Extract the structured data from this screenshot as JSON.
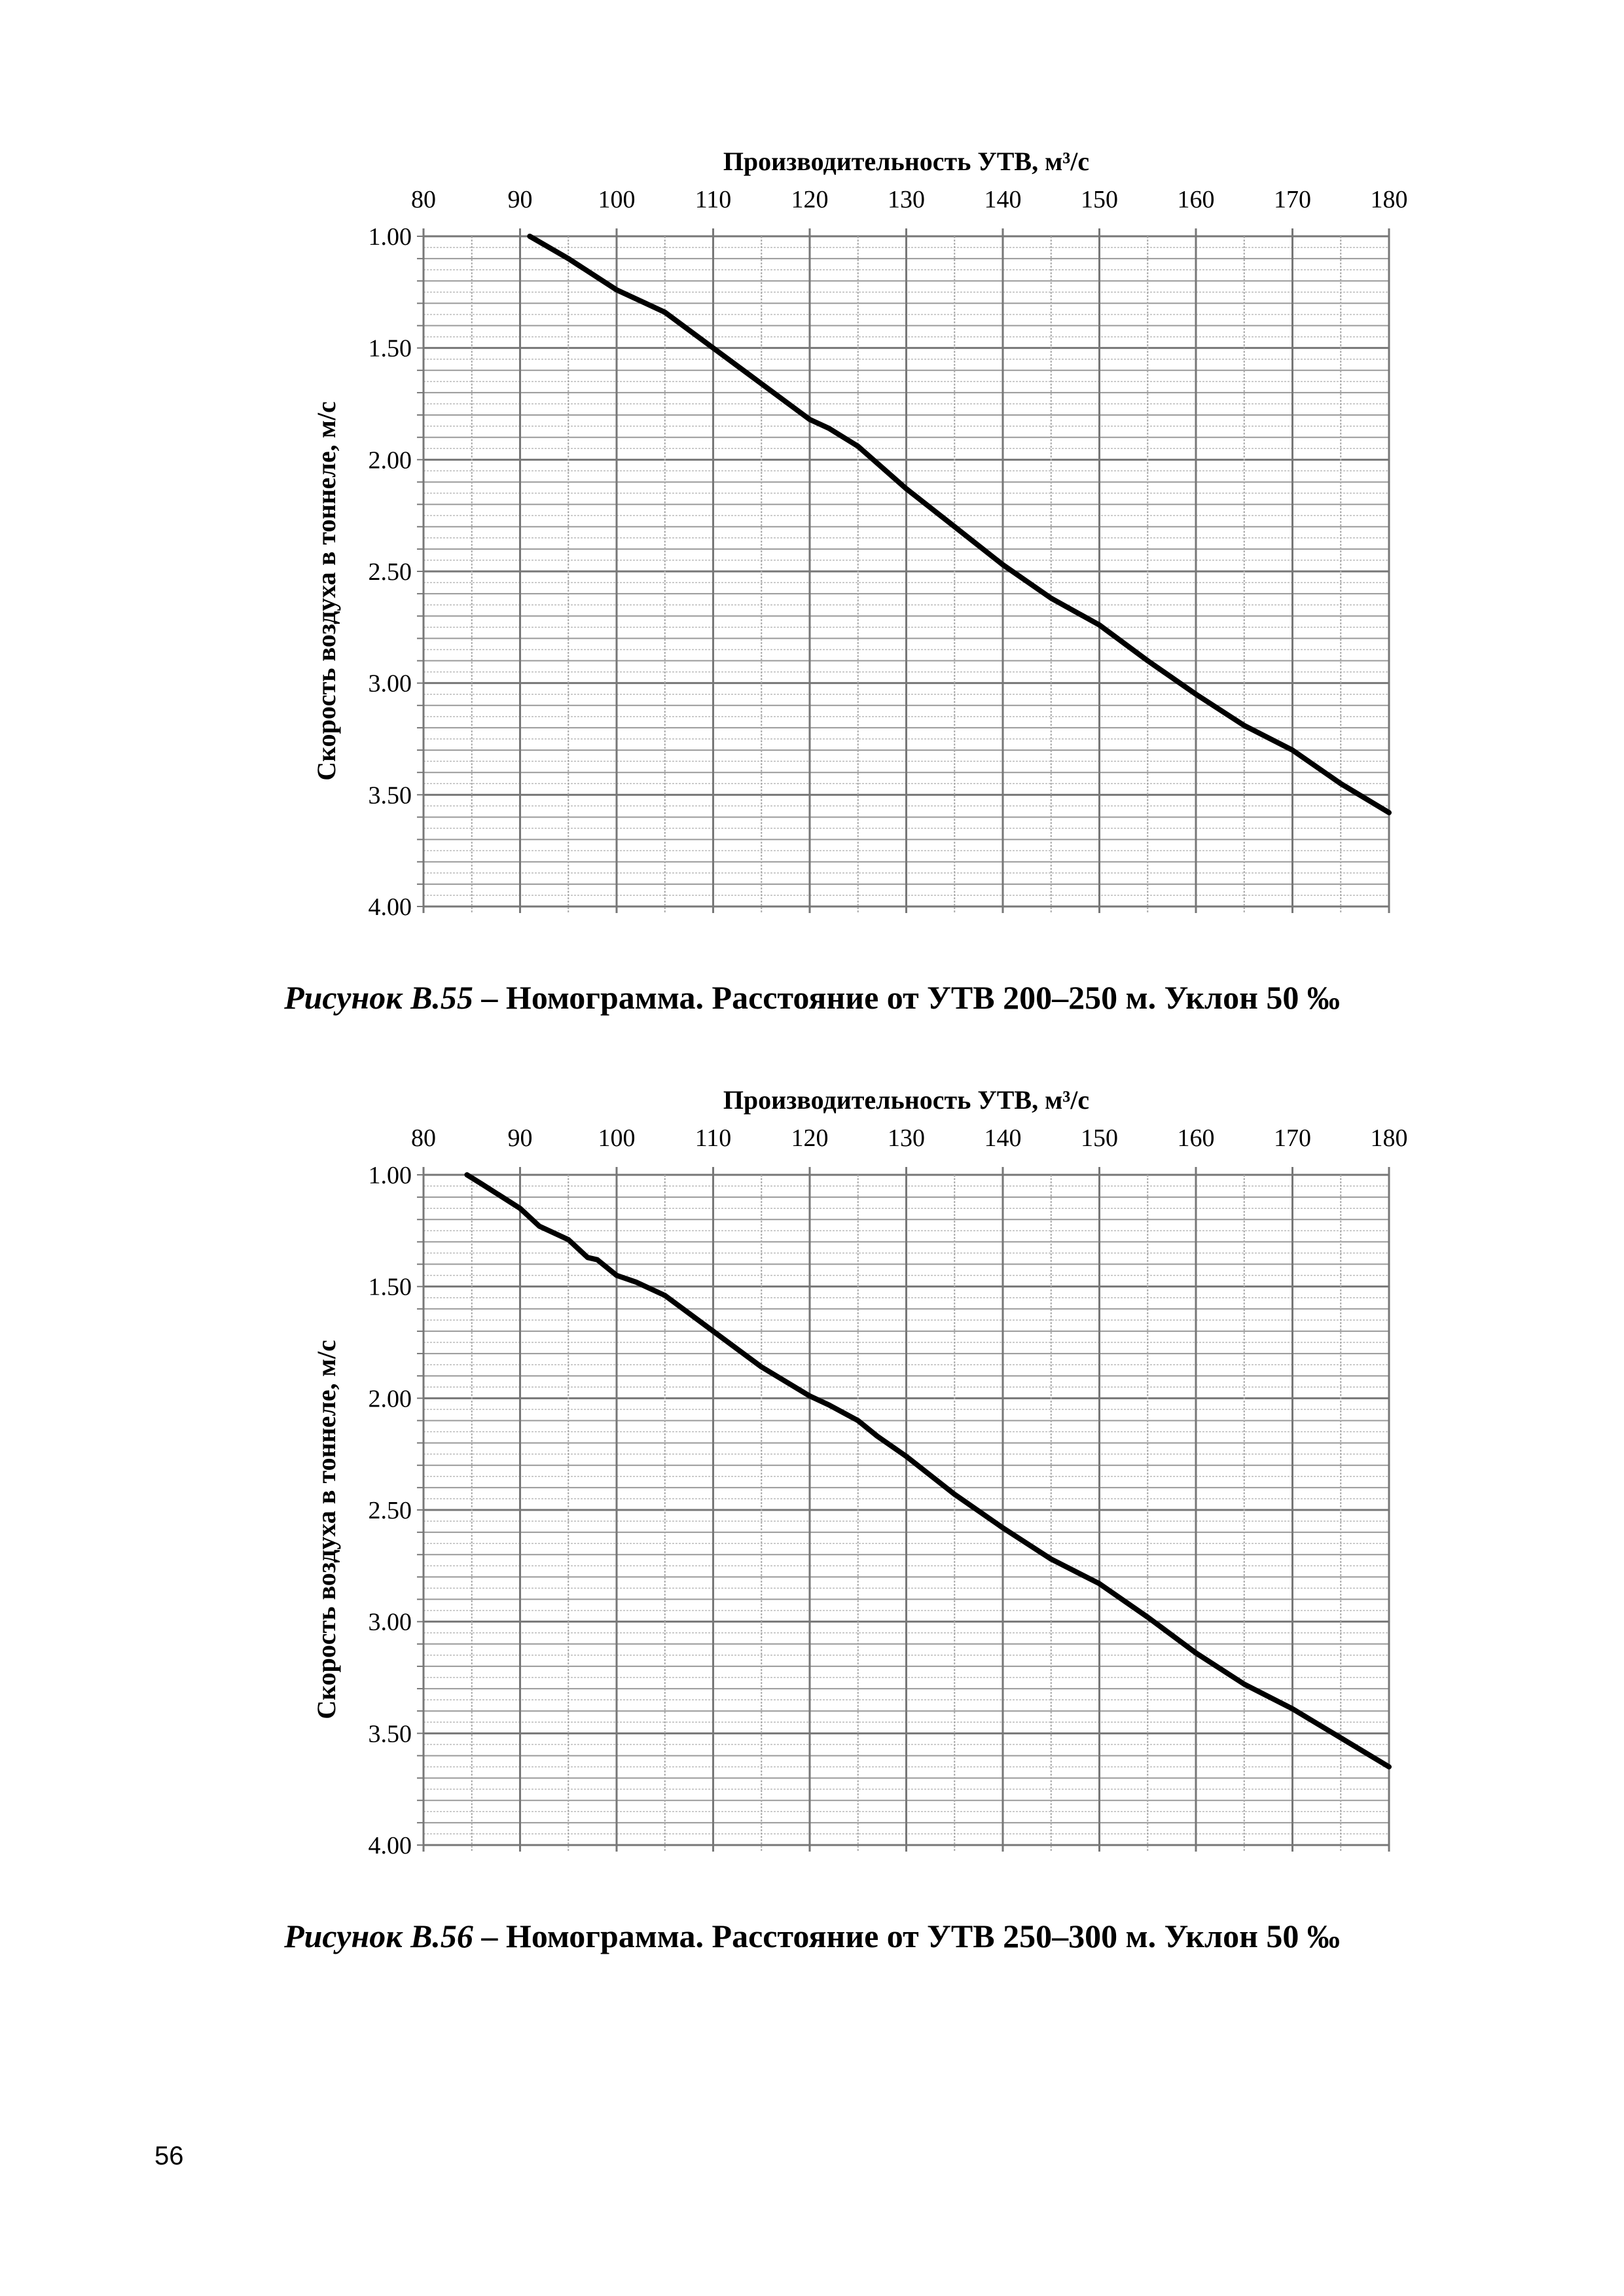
{
  "chart_data": [
    {
      "type": "line",
      "title": "Производительность УТВ, м³/с",
      "xlabel": "Производительность УТВ, м³/с",
      "ylabel": "Скорость воздуха в тоннеле, м/с",
      "xlim": [
        80,
        180
      ],
      "ylim": [
        1.0,
        4.0
      ],
      "y_inverted": true,
      "x_axis_position": "top",
      "xticks": [
        "80",
        "90",
        "100",
        "110",
        "120",
        "130",
        "140",
        "150",
        "160",
        "170",
        "180"
      ],
      "yticks": [
        "1.00",
        "1.50",
        "2.00",
        "2.50",
        "3.00",
        "3.50",
        "4.00"
      ],
      "grid": true,
      "series": [
        {
          "name": "curve",
          "x": [
            91,
            95,
            100,
            103,
            105,
            110,
            115,
            120,
            122,
            125,
            130,
            135,
            140,
            145,
            150,
            155,
            160,
            165,
            170,
            175,
            180
          ],
          "y": [
            1.0,
            1.1,
            1.24,
            1.3,
            1.34,
            1.5,
            1.66,
            1.82,
            1.86,
            1.94,
            2.13,
            2.3,
            2.47,
            2.62,
            2.74,
            2.9,
            3.05,
            3.19,
            3.3,
            3.45,
            3.58
          ]
        }
      ]
    },
    {
      "type": "line",
      "title": "Производительность УТВ, м³/с",
      "xlabel": "Производительность УТВ, м³/с",
      "ylabel": "Скорость воздуха в тоннеле, м/с",
      "xlim": [
        80,
        180
      ],
      "ylim": [
        1.0,
        4.0
      ],
      "y_inverted": true,
      "x_axis_position": "top",
      "xticks": [
        "80",
        "90",
        "100",
        "110",
        "120",
        "130",
        "140",
        "150",
        "160",
        "170",
        "180"
      ],
      "yticks": [
        "1.00",
        "1.50",
        "2.00",
        "2.50",
        "3.00",
        "3.50",
        "4.00"
      ],
      "grid": true,
      "series": [
        {
          "name": "curve",
          "x": [
            84.5,
            86,
            90,
            92,
            95,
            97,
            98,
            100,
            102,
            105,
            110,
            115,
            120,
            122,
            125,
            127,
            130,
            135,
            140,
            145,
            150,
            155,
            160,
            165,
            170,
            175,
            180
          ],
          "y": [
            1.0,
            1.04,
            1.15,
            1.23,
            1.29,
            1.37,
            1.38,
            1.45,
            1.48,
            1.54,
            1.7,
            1.86,
            1.99,
            2.03,
            2.1,
            2.17,
            2.26,
            2.43,
            2.58,
            2.72,
            2.83,
            2.98,
            3.14,
            3.28,
            3.39,
            3.52,
            3.65
          ]
        }
      ]
    }
  ],
  "captions": [
    {
      "figure": "Рисунок В.55",
      "text": " – Номограмма. Расстояние от УТВ 200–250 м. Уклон 50 ‰"
    },
    {
      "figure": "Рисунок В.56",
      "text": " – Номограмма. Расстояние от УТВ 250–300 м. Уклон 50 ‰"
    }
  ],
  "page_number": "56"
}
